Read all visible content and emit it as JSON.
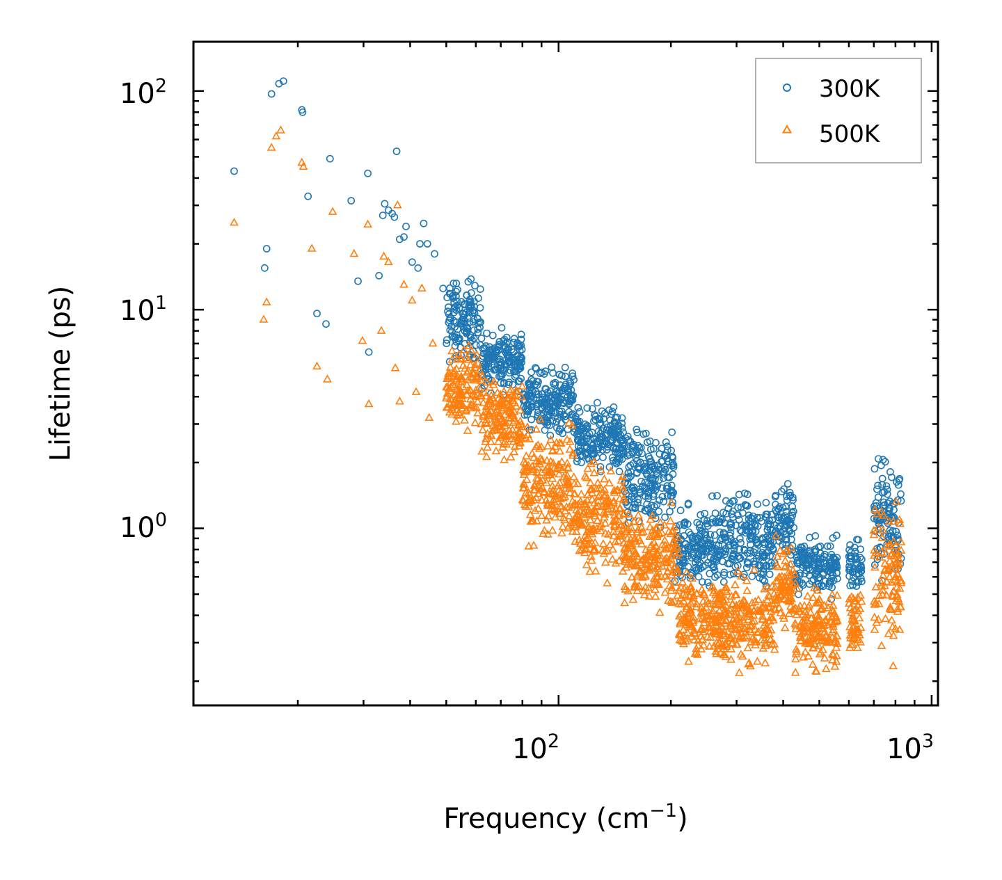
{
  "chart_data": {
    "type": "scatter",
    "xscale": "log",
    "yscale": "log",
    "xlabel_base": "Frequency (cm",
    "xlabel_exp": "−1",
    "xlabel_close": ")",
    "ylabel": "Lifetime (ps)",
    "xlim": [
      10.5,
      1040
    ],
    "ylim": [
      0.155,
      168
    ],
    "x_major_ticks": [
      {
        "value": 100,
        "base": "10",
        "exp": "2"
      },
      {
        "value": 1000,
        "base": "10",
        "exp": "3"
      }
    ],
    "y_major_ticks": [
      {
        "value": 1,
        "base": "10",
        "exp": "0"
      },
      {
        "value": 10,
        "base": "10",
        "exp": "1"
      },
      {
        "value": 100,
        "base": "10",
        "exp": "2"
      }
    ],
    "legend_position": "top-right",
    "series": [
      {
        "name": "300K",
        "color": "#1f77b4",
        "marker": "circle-open",
        "outliers": [
          [
            13.5,
            43
          ],
          [
            16.3,
            15.5
          ],
          [
            16.5,
            19
          ],
          [
            17.0,
            97
          ],
          [
            17.8,
            108
          ],
          [
            18.3,
            111
          ],
          [
            20.5,
            82
          ],
          [
            20.6,
            80
          ],
          [
            21.3,
            33
          ],
          [
            22.5,
            9.6
          ],
          [
            23.8,
            8.6
          ],
          [
            24.4,
            49
          ],
          [
            27.8,
            31.5
          ],
          [
            29.0,
            13.5
          ],
          [
            30.8,
            42
          ],
          [
            31.0,
            6.4
          ],
          [
            33.0,
            14.3
          ],
          [
            33.8,
            27
          ],
          [
            34.2,
            30.5
          ],
          [
            35.0,
            28.5
          ],
          [
            35.8,
            27.5
          ],
          [
            36.3,
            26.5
          ],
          [
            36.8,
            53
          ],
          [
            37.5,
            21
          ],
          [
            38.5,
            21.5
          ],
          [
            39.0,
            24
          ],
          [
            40.5,
            16.5
          ],
          [
            42.0,
            15.5
          ],
          [
            42.5,
            20
          ],
          [
            43.5,
            24.8
          ],
          [
            44.5,
            20
          ],
          [
            46.5,
            18
          ],
          [
            49.0,
            12.5
          ]
        ],
        "bands": [
          {
            "x": [
              50,
              62
            ],
            "y": [
              5,
              16
            ]
          },
          {
            "x": [
              62,
              80
            ],
            "y": [
              3.8,
              9
            ]
          },
          {
            "x": [
              80,
              110
            ],
            "y": [
              2.5,
              6
            ]
          },
          {
            "x": [
              110,
              150
            ],
            "y": [
              1.6,
              4
            ]
          },
          {
            "x": [
              150,
              205
            ],
            "y": [
              0.8,
              3.5
            ]
          },
          {
            "x": [
              205,
              240
            ],
            "y": [
              0.45,
              1.4
            ]
          },
          {
            "x": [
              240,
              380
            ],
            "y": [
              0.45,
              1.7
            ]
          },
          {
            "x": [
              380,
              430
            ],
            "y": [
              0.6,
              2.0
            ]
          },
          {
            "x": [
              430,
              560
            ],
            "y": [
              0.45,
              1.0
            ]
          },
          {
            "x": [
              600,
              650
            ],
            "y": [
              0.5,
              0.95
            ]
          },
          {
            "x": [
              700,
              830
            ],
            "y": [
              0.45,
              2.6
            ]
          }
        ]
      },
      {
        "name": "500K",
        "color": "#ff7f0e",
        "marker": "triangle-open",
        "outliers": [
          [
            13.5,
            25
          ],
          [
            16.2,
            9
          ],
          [
            16.5,
            10.8
          ],
          [
            17.0,
            55
          ],
          [
            17.5,
            62
          ],
          [
            18.0,
            66
          ],
          [
            20.5,
            47
          ],
          [
            20.7,
            45
          ],
          [
            21.8,
            19
          ],
          [
            22.5,
            5.5
          ],
          [
            24.0,
            4.8
          ],
          [
            24.8,
            28
          ],
          [
            28.3,
            18
          ],
          [
            29.8,
            7.2
          ],
          [
            30.8,
            24.5
          ],
          [
            31.0,
            3.7
          ],
          [
            33.5,
            8
          ],
          [
            34.0,
            17.5
          ],
          [
            35.0,
            16.5
          ],
          [
            36.5,
            5.4
          ],
          [
            37.0,
            30
          ],
          [
            37.5,
            3.8
          ],
          [
            38.5,
            13
          ],
          [
            40.5,
            11
          ],
          [
            41.5,
            4.2
          ],
          [
            43.0,
            12.5
          ],
          [
            45.0,
            3.2
          ],
          [
            46.0,
            7
          ]
        ],
        "bands": [
          {
            "x": [
              50,
              62
            ],
            "y": [
              2.6,
              8
            ]
          },
          {
            "x": [
              62,
              80
            ],
            "y": [
              1.8,
              5.5
            ]
          },
          {
            "x": [
              80,
              110
            ],
            "y": [
              0.7,
              3.5
            ]
          },
          {
            "x": [
              110,
              150
            ],
            "y": [
              0.5,
              2.5
            ]
          },
          {
            "x": [
              150,
              210
            ],
            "y": [
              0.35,
              1.5
            ]
          },
          {
            "x": [
              210,
              240
            ],
            "y": [
              0.22,
              0.7
            ]
          },
          {
            "x": [
              240,
              380
            ],
            "y": [
              0.2,
              0.7
            ]
          },
          {
            "x": [
              380,
              430
            ],
            "y": [
              0.3,
              1.0
            ]
          },
          {
            "x": [
              430,
              560
            ],
            "y": [
              0.2,
              0.6
            ]
          },
          {
            "x": [
              600,
              650
            ],
            "y": [
              0.22,
              0.6
            ]
          },
          {
            "x": [
              700,
              830
            ],
            "y": [
              0.22,
              1.7
            ]
          }
        ]
      }
    ]
  }
}
